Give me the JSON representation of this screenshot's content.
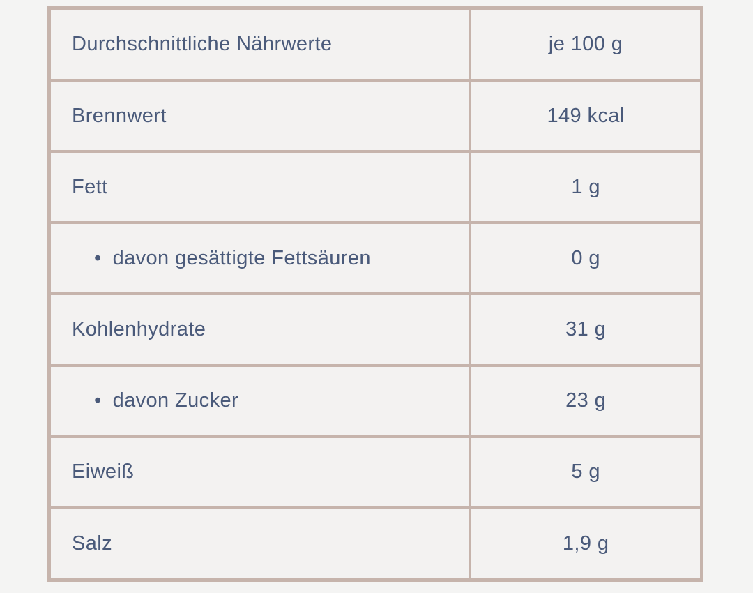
{
  "page": {
    "background_color": "#f4f4f3"
  },
  "table": {
    "border_color": "#c6b4ac",
    "cell_background_color": "#f3f2f1",
    "text_color": "#4a5a7a",
    "bullet_glyph": "•",
    "header": {
      "label": "Durchschnittliche Nährwerte",
      "value": "je 100 g"
    },
    "rows": [
      {
        "label": "Brennwert",
        "value": "149 kcal",
        "indent": false
      },
      {
        "label": "Fett",
        "value": "1 g",
        "indent": false
      },
      {
        "label": "davon gesättigte Fettsäuren",
        "value": "0 g",
        "indent": true
      },
      {
        "label": "Kohlenhydrate",
        "value": "31 g",
        "indent": false
      },
      {
        "label": "davon Zucker",
        "value": "23 g",
        "indent": true
      },
      {
        "label": "Eiweiß",
        "value": "5 g",
        "indent": false
      },
      {
        "label": "Salz",
        "value": "1,9 g",
        "indent": false
      }
    ]
  }
}
